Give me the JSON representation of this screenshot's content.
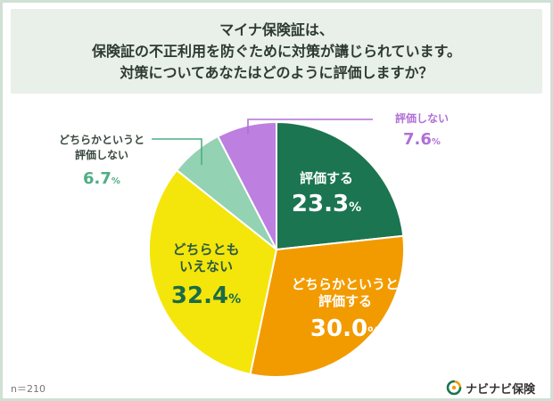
{
  "colors": {
    "hyoka_suru": "#1b7550",
    "dochiraka_hyoka": "#f29b00",
    "dochiramo": "#f4e60a",
    "dochiraka_shinai": "#93d2b3",
    "hyoka_shinai": "#bd7fe0",
    "background": "#ffffff",
    "title_bg": "#e9efe9",
    "frame": "#cfe0d4"
  },
  "chart_data": {
    "type": "pie",
    "title_lines": [
      "マイナ保険証は、",
      "保険証の不正利用を防ぐために対策が講じられています。",
      "対策についてあなたはどのように評価しますか？"
    ],
    "categories": [
      "評価する",
      "どちらかというと評価する",
      "どちらともいえない",
      "どちらかというと評価しない",
      "評価しない"
    ],
    "values": [
      23.3,
      30.0,
      32.4,
      6.7,
      7.6
    ],
    "value_labels": [
      "23.3",
      "30.0",
      "32.4",
      "6.7",
      "7.6"
    ],
    "unit": "%",
    "label_lines": [
      [
        "評価する"
      ],
      [
        "どちらかというと",
        "評価する"
      ],
      [
        "どちらとも",
        "いえない"
      ],
      [
        "どちらかというと",
        "評価しない"
      ],
      [
        "評価しない"
      ]
    ]
  },
  "footer": {
    "sample_size": "n＝210",
    "brand_name": "ナビナビ保険"
  }
}
